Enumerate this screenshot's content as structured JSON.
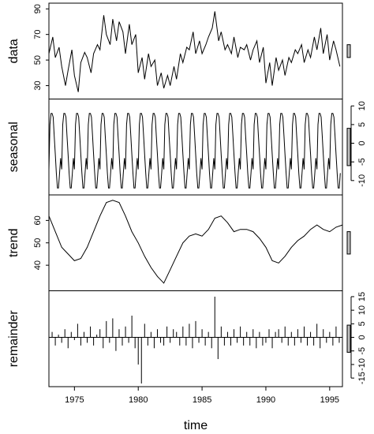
{
  "chart_data": {
    "type": "line",
    "xlabel": "time",
    "x_ticks": [
      "1975",
      "1980",
      "1985",
      "1990",
      "1995"
    ],
    "x_tick_values": [
      1975,
      1980,
      1985,
      1990,
      1995
    ],
    "x_range": [
      1973,
      1996
    ],
    "panels": [
      {
        "label": "data",
        "ticks": [
          "30",
          "50",
          "70",
          "90"
        ],
        "tick_values": [
          30,
          50,
          70,
          90
        ],
        "tick_side": "left",
        "ylim": [
          22,
          92
        ],
        "scale_bar_height": 10,
        "x": [
          1973.0,
          1973.3,
          1973.5,
          1973.8,
          1974.0,
          1974.3,
          1974.5,
          1974.8,
          1975.0,
          1975.3,
          1975.5,
          1975.8,
          1976.0,
          1976.3,
          1976.5,
          1976.8,
          1977.0,
          1977.3,
          1977.5,
          1977.8,
          1978.0,
          1978.3,
          1978.5,
          1978.8,
          1979.0,
          1979.3,
          1979.5,
          1979.8,
          1980.0,
          1980.3,
          1980.5,
          1980.8,
          1981.0,
          1981.3,
          1981.5,
          1981.8,
          1982.0,
          1982.3,
          1982.5,
          1982.8,
          1983.0,
          1983.3,
          1983.5,
          1983.8,
          1984.0,
          1984.3,
          1984.5,
          1984.8,
          1985.0,
          1985.3,
          1985.5,
          1985.8,
          1986.0,
          1986.3,
          1986.5,
          1986.8,
          1987.0,
          1987.3,
          1987.5,
          1987.8,
          1988.0,
          1988.3,
          1988.5,
          1988.8,
          1989.0,
          1989.3,
          1989.5,
          1989.8,
          1990.0,
          1990.3,
          1990.5,
          1990.8,
          1991.0,
          1991.3,
          1991.5,
          1991.8,
          1992.0,
          1992.3,
          1992.5,
          1992.8,
          1993.0,
          1993.3,
          1993.5,
          1993.8,
          1994.0,
          1994.3,
          1994.5,
          1994.8,
          1995.0,
          1995.3,
          1995.5,
          1995.8
        ],
        "values": [
          55,
          68,
          52,
          60,
          45,
          30,
          42,
          58,
          38,
          25,
          48,
          56,
          52,
          40,
          55,
          62,
          58,
          85,
          70,
          62,
          82,
          65,
          80,
          72,
          55,
          78,
          62,
          70,
          40,
          52,
          35,
          55,
          45,
          50,
          30,
          40,
          28,
          38,
          30,
          45,
          35,
          55,
          48,
          60,
          58,
          72,
          55,
          65,
          55,
          62,
          68,
          75,
          88,
          65,
          72,
          58,
          62,
          55,
          68,
          52,
          60,
          58,
          62,
          50,
          58,
          65,
          48,
          60,
          32,
          48,
          30,
          52,
          42,
          50,
          38,
          52,
          48,
          58,
          55,
          62,
          48,
          58,
          52,
          68,
          58,
          75,
          55,
          70,
          50,
          65,
          58,
          45
        ],
        "height_weight": 1.0
      },
      {
        "label": "seasonal",
        "ticks": [
          "-10",
          "-5",
          "0",
          "5",
          "10"
        ],
        "tick_values": [
          -10,
          -5,
          0,
          5,
          10
        ],
        "tick_side": "right",
        "ylim": [
          -13,
          11
        ],
        "scale_bar_height": 10,
        "period_pattern": [
          -7,
          5,
          8,
          8,
          7,
          2,
          -3,
          -8,
          -12,
          -12,
          -8,
          -4
        ],
        "height_weight": 1.0
      },
      {
        "label": "trend",
        "ticks": [
          "40",
          "50",
          "60"
        ],
        "tick_values": [
          40,
          50,
          60
        ],
        "tick_side": "left",
        "ylim": [
          30,
          70
        ],
        "scale_bar_height": 10,
        "x": [
          1973.0,
          1973.5,
          1974.0,
          1974.5,
          1975.0,
          1975.5,
          1976.0,
          1976.5,
          1977.0,
          1977.5,
          1978.0,
          1978.5,
          1979.0,
          1979.5,
          1980.0,
          1980.5,
          1981.0,
          1981.5,
          1982.0,
          1982.5,
          1983.0,
          1983.5,
          1984.0,
          1984.5,
          1985.0,
          1985.5,
          1986.0,
          1986.5,
          1987.0,
          1987.5,
          1988.0,
          1988.5,
          1989.0,
          1989.5,
          1990.0,
          1990.5,
          1991.0,
          1991.5,
          1992.0,
          1992.5,
          1993.0,
          1993.5,
          1994.0,
          1994.5,
          1995.0,
          1995.5,
          1996.0
        ],
        "values": [
          62,
          55,
          48,
          45,
          42,
          43,
          48,
          55,
          62,
          68,
          69,
          68,
          62,
          55,
          50,
          44,
          39,
          35,
          32,
          38,
          44,
          50,
          53,
          54,
          53,
          56,
          61,
          62,
          59,
          55,
          56,
          56,
          55,
          52,
          48,
          42,
          41,
          44,
          48,
          51,
          53,
          56,
          58,
          56,
          55,
          57,
          58
        ],
        "height_weight": 1.0
      },
      {
        "label": "remainder",
        "ticks": [
          "-15",
          "-10",
          "-5",
          "0",
          "5",
          "10",
          "15"
        ],
        "tick_values": [
          -15,
          -10,
          -5,
          0,
          5,
          10,
          15
        ],
        "tick_side": "right",
        "ylim": [
          -17,
          16
        ],
        "scale_bar_height": 10,
        "x": [
          1973.0,
          1973.25,
          1973.5,
          1973.75,
          1974.0,
          1974.25,
          1974.5,
          1974.75,
          1975.0,
          1975.25,
          1975.5,
          1975.75,
          1976.0,
          1976.25,
          1976.5,
          1976.75,
          1977.0,
          1977.25,
          1977.5,
          1977.75,
          1978.0,
          1978.25,
          1978.5,
          1978.75,
          1979.0,
          1979.25,
          1979.5,
          1979.75,
          1980.0,
          1980.25,
          1980.5,
          1980.75,
          1981.0,
          1981.25,
          1981.5,
          1981.75,
          1982.0,
          1982.25,
          1982.5,
          1982.75,
          1983.0,
          1983.25,
          1983.5,
          1983.75,
          1984.0,
          1984.25,
          1984.5,
          1984.75,
          1985.0,
          1985.25,
          1985.5,
          1985.75,
          1986.0,
          1986.25,
          1986.5,
          1986.75,
          1987.0,
          1987.25,
          1987.5,
          1987.75,
          1988.0,
          1988.25,
          1988.5,
          1988.75,
          1989.0,
          1989.25,
          1989.5,
          1989.75,
          1990.0,
          1990.25,
          1990.5,
          1990.75,
          1991.0,
          1991.25,
          1991.5,
          1991.75,
          1992.0,
          1992.25,
          1992.5,
          1992.75,
          1993.0,
          1993.25,
          1993.5,
          1993.75,
          1994.0,
          1994.25,
          1994.5,
          1994.75,
          1995.0,
          1995.25,
          1995.5,
          1995.75
        ],
        "values": [
          1,
          2,
          -3,
          1,
          -2,
          3,
          -4,
          2,
          -1,
          5,
          -3,
          2,
          -2,
          4,
          -3,
          1,
          3,
          -4,
          6,
          -2,
          7,
          -5,
          3,
          -3,
          4,
          -2,
          8,
          -4,
          -10,
          -17,
          5,
          -3,
          2,
          -4,
          3,
          -2,
          -3,
          4,
          -2,
          3,
          2,
          -3,
          4,
          -3,
          5,
          -4,
          6,
          -2,
          3,
          -3,
          2,
          -4,
          15,
          -8,
          4,
          -3,
          2,
          -3,
          3,
          -2,
          4,
          -3,
          2,
          -3,
          3,
          -4,
          2,
          -3,
          -2,
          3,
          -4,
          2,
          3,
          -2,
          4,
          -3,
          2,
          -3,
          3,
          -2,
          4,
          -3,
          2,
          -3,
          5,
          -4,
          3,
          -2,
          2,
          -3,
          4,
          -2
        ],
        "height_weight": 1.0
      }
    ]
  }
}
